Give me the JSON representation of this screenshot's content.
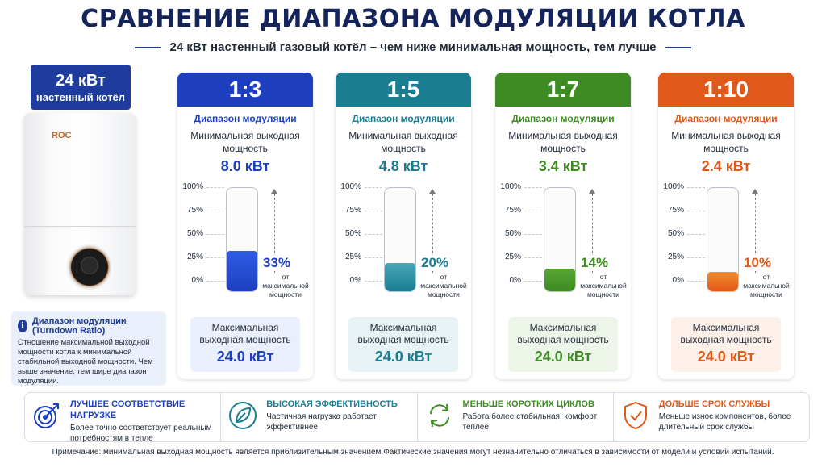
{
  "title": "СРАВНЕНИЕ ДИАПАЗОНА МОДУЛЯЦИИ КОТЛА",
  "subtitle": "24 кВт настенный газовый котёл – чем ниже минимальная мощность, тем лучше",
  "boiler": {
    "power": "24 кВт",
    "type": "настенный котёл",
    "brand": "ROC"
  },
  "info": {
    "title": "Диапазон модуляции (Turndown Ratio)",
    "text": "Отношение максимальной выходной мощности котла к минимальной стабильной выходной мощности. Чем выше значение, тем шире диапазон модуляции."
  },
  "ticks": [
    "100%",
    "75%",
    "50%",
    "25%",
    "0%"
  ],
  "cards": [
    {
      "ratio": "1:3",
      "range_label": "Диапазон модуляции",
      "min_label": "Минимальная выходная мощность",
      "min_value": "8.0 кВт",
      "percent_text": "33%",
      "percent": 33,
      "percent_sub": "от максимальной мощности",
      "max_label": "Максимальная выходная мощность",
      "max_value": "24.0 кВт",
      "color": "#1d3fbf",
      "fill_color": "#2f5ce6",
      "max_bg": "#e9effc"
    },
    {
      "ratio": "1:5",
      "range_label": "Диапазон модуляции",
      "min_label": "Минимальная выходная мощность",
      "min_value": "4.8 кВт",
      "percent_text": "20%",
      "percent": 20,
      "percent_sub": "от максимальной мощности",
      "max_label": "Максимальная выходная мощность",
      "max_value": "24.0 кВт",
      "color": "#1b7d91",
      "fill_color": "#4aa6b8",
      "max_bg": "#e6f2f4"
    },
    {
      "ratio": "1:7",
      "range_label": "Диапазон модуляции",
      "min_label": "Минимальная выходная мощность",
      "min_value": "3.4 кВт",
      "percent_text": "14%",
      "percent": 14,
      "percent_sub": "от максимальной мощности",
      "max_label": "Максимальная выходная мощность",
      "max_value": "24.0 кВт",
      "color": "#3d8b22",
      "fill_color": "#59a632",
      "max_bg": "#edf5e8"
    },
    {
      "ratio": "1:10",
      "range_label": "Диапазон модуляции",
      "min_label": "Минимальная выходная мощность",
      "min_value": "2.4 кВт",
      "percent_text": "10%",
      "percent": 10,
      "percent_sub": "от максимальной мощности",
      "max_label": "Максимальная выходная мощность",
      "max_value": "24.0 кВт",
      "color": "#e0581a",
      "fill_color": "#f58c2a",
      "max_bg": "#fdf0e8"
    }
  ],
  "benefits": [
    {
      "icon": "target-icon",
      "title": "ЛУЧШЕЕ СООТВЕТСТВИЕ НАГРУЗКЕ",
      "text": "Более точно соответствует реальным потребностям в тепле",
      "color": "#1d3fbf"
    },
    {
      "icon": "leaf-icon",
      "title": "ВЫСОКАЯ ЭФФЕКТИВНОСТЬ",
      "text": "Частичная нагрузка работает эффективнее",
      "color": "#1b7d91"
    },
    {
      "icon": "cycle-icon",
      "title": "МЕНЬШЕ КОРОТКИХ ЦИКЛОВ",
      "text": "Работа более стабильная, комфорт теплее",
      "color": "#3d8b22"
    },
    {
      "icon": "shield-check-icon",
      "title": "ДОЛЬШЕ СРОК СЛУЖБЫ",
      "text": "Меньше износ компонентов, более длительный срок службы",
      "color": "#e0581a"
    }
  ],
  "note": "Примечание: минимальная выходная мощность является приблизительным значением.Фактические значения могут незначительно отличаться в зависимости от модели и условий испытаний."
}
